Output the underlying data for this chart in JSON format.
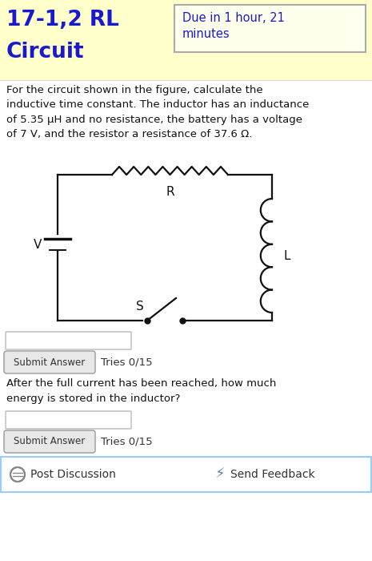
{
  "bg_color_top": "#FFFFCC",
  "bg_color_bottom": "#FFFFFF",
  "title_text_line1": "17-1,2 RL",
  "title_text_line2": "Circuit",
  "title_color": "#1a1acc",
  "due_text": "Due in 1 hour, 21\nminutes",
  "due_color": "#1a1acc",
  "due_box_edge": "#AAAAAA",
  "due_box_face": "#FFFFEE",
  "problem_text": "For the circuit shown in the figure, calculate the\ninductive time constant. The inductor has an inductance\nof 5.35 μH and no resistance, the battery has a voltage\nof 7 V, and the resistor a resistance of 37.6 Ω.",
  "problem_text_color": "#111111",
  "circuit_line_color": "#111111",
  "label_R": "R",
  "label_L": "L",
  "label_S": "S",
  "label_V": "V",
  "submit_btn_text": "Submit Answer",
  "tries_text": "Tries 0/15",
  "question2_text": "After the full current has been reached, how much\nenergy is stored in the inductor?",
  "footer_border": "#99CCFF",
  "post_discussion_text": "Post Discussion",
  "send_feedback_text": "Send Feedback"
}
